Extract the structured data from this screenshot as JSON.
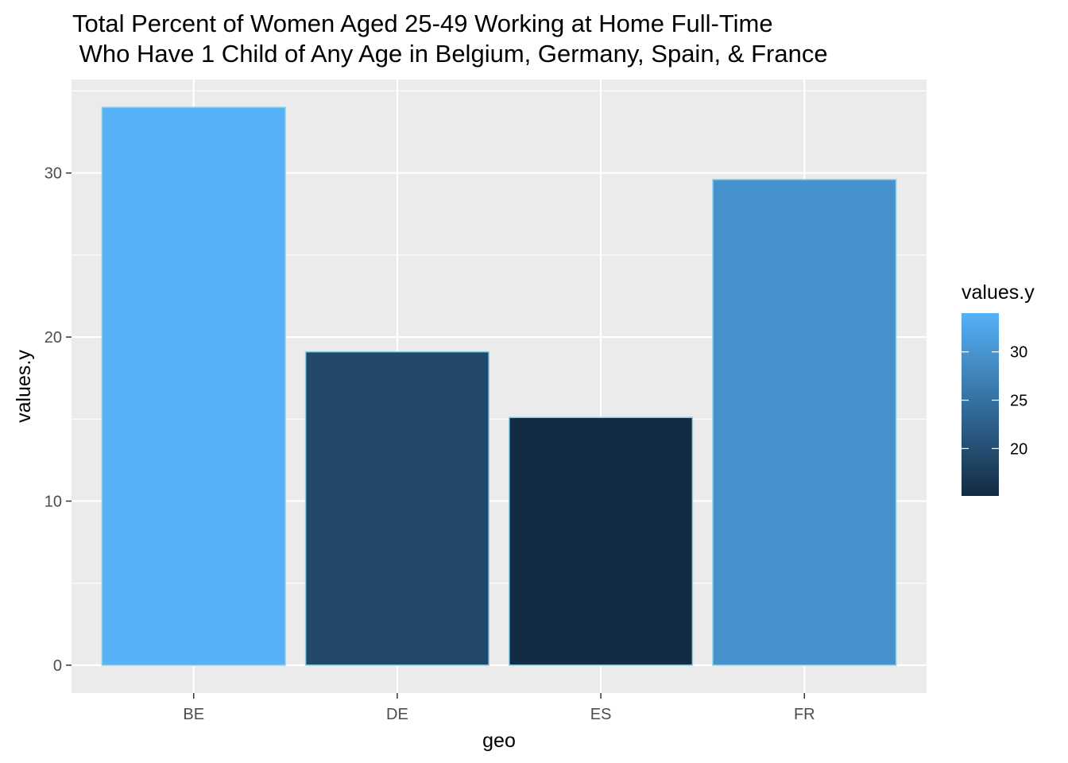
{
  "chart_data": {
    "type": "bar",
    "title_lines": [
      "Total Percent of Women Aged 25-49 Working at Home Full-Time",
      " Who Have 1 Child of Any Age in Belgium, Germany, Spain, & France"
    ],
    "xlabel": "geo",
    "ylabel": "values.y",
    "categories": [
      "BE",
      "DE",
      "ES",
      "FR"
    ],
    "values": [
      34.0,
      19.1,
      15.1,
      29.6
    ],
    "ylim": [
      -1.7,
      35.7
    ],
    "yticks": [
      0,
      10,
      20,
      30
    ],
    "grid": true,
    "legend": {
      "title": "values.y",
      "placement": "right",
      "range": [
        15.1,
        34.0
      ],
      "ticks": [
        20,
        25,
        30
      ],
      "color_low": "#132B43",
      "color_high": "#56B1F7"
    },
    "colors": {
      "panel_background": "#EBEBEB",
      "grid": "#FFFFFF",
      "bar_outline": "#87CEEB"
    }
  }
}
